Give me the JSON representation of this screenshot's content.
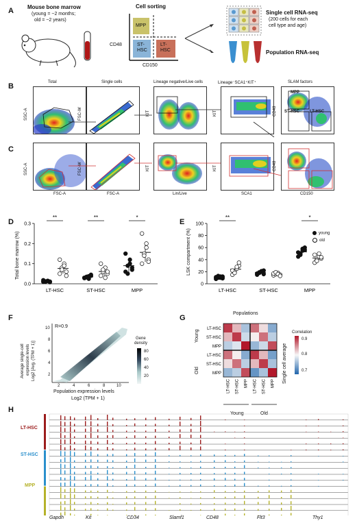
{
  "panels": {
    "A": {
      "letter": "A",
      "mouse_title": "Mouse bone marrow",
      "mouse_young": "(young = ~2 months;",
      "mouse_old": "old = ~2 years)",
      "sorting_title": "Cell sorting",
      "gate_mpp": "MPP",
      "gate_st1": "ST-",
      "gate_st2": "HSC",
      "gate_lt1": "LT-",
      "gate_lt2": "HSC",
      "axis_y": "CD48",
      "axis_x": "CD150",
      "sc_title": "Single cell RNA-seq",
      "sc_sub1": "(200 cells for each",
      "sc_sub2": "cell type and age)",
      "pop_title": "Population RNA-seq",
      "colors": {
        "mpp": "#c9c26a",
        "st": "#8ab4d8",
        "lt": "#c8705a",
        "tube_blue": "#3a8fd0",
        "tube_yellow": "#c7c23a",
        "tube_red": "#b83030"
      }
    },
    "B": {
      "letter": "B",
      "titles": [
        "Total",
        "Single cells",
        "Lineage negative/Live cells",
        "Lineage⁻SCA1⁺KIT⁺",
        "SLAM factors"
      ],
      "ylabels": [
        "SSC-A",
        "FSC-W",
        "KIT",
        "KIT",
        "CD48"
      ],
      "gates": {
        "mpp": "MPP",
        "st": "ST-HSC",
        "lt": "LT-HSC"
      }
    },
    "C": {
      "letter": "C",
      "ylabels": [
        "SSC-A",
        "FSC-W",
        "KIT",
        "KIT",
        "CD48"
      ],
      "xlabels": [
        "FSC-A",
        "FSC-A",
        "Lin/Live",
        "SCA1",
        "CD150"
      ]
    },
    "D": {
      "letter": "D",
      "ylabel": "Total bone marrow (%)",
      "yticks": [
        "0.0",
        "0.1",
        "0.2",
        "0.3"
      ],
      "categories": [
        "LT-HSC",
        "ST-HSC",
        "MPP"
      ],
      "sig": [
        "**",
        "**",
        "*"
      ]
    },
    "E": {
      "letter": "E",
      "ylabel": "LSK compartment (%)",
      "yticks": [
        "0",
        "20",
        "40",
        "60",
        "80",
        "100"
      ],
      "categories": [
        "LT-HSC",
        "ST-HSC",
        "MPP"
      ],
      "sig": [
        "**",
        "*"
      ],
      "legend": {
        "young": "young",
        "old": "old"
      }
    },
    "F": {
      "letter": "F",
      "r_label": "R=0.9",
      "ylabel1": "Average single-cell",
      "ylabel2": "expression levels",
      "ylabel3": "Log2 [Avg. (TPM + 1)]",
      "xlabel1": "Population expression levels",
      "xlabel2": "Log2 (TPM + 1)",
      "xticks": [
        "2",
        "4",
        "6",
        "8",
        "10"
      ],
      "yticks": [
        "2",
        "4",
        "6",
        "8",
        "10"
      ],
      "cbar_title1": "Gene",
      "cbar_title2": "density",
      "cbar_ticks": [
        "80",
        "60",
        "40",
        "20"
      ]
    },
    "G": {
      "letter": "G",
      "title": "Populations",
      "row_labels": [
        "LT-HSC",
        "ST-HSC",
        "MPP",
        "LT-HSC",
        "ST-HSC",
        "MPP"
      ],
      "col_labels": [
        "LT-HSC",
        "ST-HSC",
        "MPP",
        "LT-HSC",
        "ST-HSC",
        "MPP"
      ],
      "group_young": "Young",
      "group_old": "Old",
      "side_label": "Single cell average",
      "cbar_title": "Correlation",
      "cbar_ticks": [
        "0.9",
        "0.8",
        "0.7"
      ],
      "matrix": [
        [
          0.93,
          0.86,
          0.78,
          0.9,
          0.84,
          0.76
        ],
        [
          0.86,
          0.93,
          0.8,
          0.83,
          0.9,
          0.79
        ],
        [
          0.79,
          0.81,
          0.95,
          0.77,
          0.8,
          0.92
        ],
        [
          0.9,
          0.83,
          0.76,
          0.93,
          0.86,
          0.75
        ],
        [
          0.84,
          0.9,
          0.79,
          0.86,
          0.93,
          0.78
        ],
        [
          0.77,
          0.79,
          0.92,
          0.74,
          0.78,
          0.97
        ]
      ]
    },
    "H": {
      "letter": "H",
      "groups": [
        "LT-HSC",
        "ST-HSC",
        "MPP"
      ],
      "group_colors": [
        "#9b1b1b",
        "#2a8fcc",
        "#b5b22a"
      ],
      "genes": [
        "Gapdh",
        "Kit",
        "CD34",
        "Slamf1",
        "CD48",
        "Flt3",
        "Thy1"
      ]
    }
  },
  "chart_data": [
    {
      "type": "scatter",
      "title": "",
      "xlabel": "",
      "ylabel": "Total bone marrow (%)",
      "ylim": [
        0,
        0.3
      ],
      "categories": [
        "LT-HSC",
        "ST-HSC",
        "MPP"
      ],
      "series": [
        {
          "name": "young",
          "values": [
            [
              0.01,
              0.012,
              0.015,
              0.008,
              0.018,
              0.01,
              0.014,
              0.011
            ],
            [
              0.03,
              0.035,
              0.025,
              0.04,
              0.028,
              0.032,
              0.038,
              0.045
            ],
            [
              0.06,
              0.09,
              0.12,
              0.08,
              0.15,
              0.05,
              0.1,
              0.07
            ]
          ]
        },
        {
          "name": "old",
          "values": [
            [
              0.05,
              0.08,
              0.1,
              0.06,
              0.12,
              0.07,
              0.09,
              0.04
            ],
            [
              0.04,
              0.06,
              0.08,
              0.05,
              0.1,
              0.07,
              0.03,
              0.06
            ],
            [
              0.1,
              0.15,
              0.2,
              0.12,
              0.25,
              0.14,
              0.18,
              0.11
            ]
          ]
        }
      ]
    },
    {
      "type": "scatter",
      "title": "",
      "xlabel": "",
      "ylabel": "LSK compartment (%)",
      "ylim": [
        0,
        100
      ],
      "categories": [
        "LT-HSC",
        "ST-HSC",
        "MPP"
      ],
      "series": [
        {
          "name": "young",
          "values": [
            [
              8,
              10,
              12,
              9,
              11,
              13,
              10,
              12
            ],
            [
              15,
              18,
              20,
              22,
              17,
              19,
              21,
              16
            ],
            [
              45,
              50,
              55,
              60,
              52,
              48,
              58,
              56
            ]
          ]
        },
        {
          "name": "old",
          "values": [
            [
              15,
              20,
              25,
              30,
              22,
              18,
              28,
              35
            ],
            [
              14,
              16,
              18,
              15,
              17,
              19,
              16,
              13
            ],
            [
              35,
              40,
              45,
              42,
              48,
              38,
              50,
              44
            ]
          ]
        }
      ]
    },
    {
      "type": "heatmap",
      "title": "Populations",
      "categories": [
        "LT-HSC",
        "ST-HSC",
        "MPP",
        "LT-HSC",
        "ST-HSC",
        "MPP"
      ],
      "values": [
        [
          0.93,
          0.86,
          0.78,
          0.9,
          0.84,
          0.76
        ],
        [
          0.86,
          0.93,
          0.8,
          0.83,
          0.9,
          0.79
        ],
        [
          0.79,
          0.81,
          0.95,
          0.77,
          0.8,
          0.92
        ],
        [
          0.9,
          0.83,
          0.76,
          0.93,
          0.86,
          0.75
        ],
        [
          0.84,
          0.9,
          0.79,
          0.86,
          0.93,
          0.78
        ],
        [
          0.77,
          0.79,
          0.92,
          0.74,
          0.78,
          0.97
        ]
      ]
    }
  ]
}
